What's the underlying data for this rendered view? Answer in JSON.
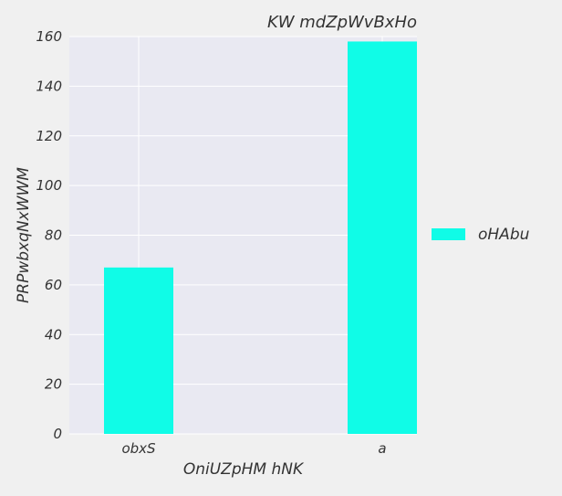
{
  "chart_data": {
    "type": "bar",
    "title": "KW mdZpWvBxHo",
    "xlabel": "OniUZpHM hNK",
    "ylabel": "PRPwbxqNxWWM",
    "categories": [
      "obxS",
      "a"
    ],
    "series": [
      {
        "name": "oHAbu",
        "values": [
          67,
          158
        ],
        "color": "#10fce7"
      }
    ],
    "ylim": [
      0,
      160
    ],
    "yticks": [
      0,
      20,
      40,
      60,
      80,
      100,
      120,
      140,
      160
    ],
    "grid": true,
    "legend_position": "right",
    "colors": {
      "plot_background": "#e9e9f2",
      "figure_background": "#f0f0f0",
      "grid": "#ffffff"
    }
  }
}
